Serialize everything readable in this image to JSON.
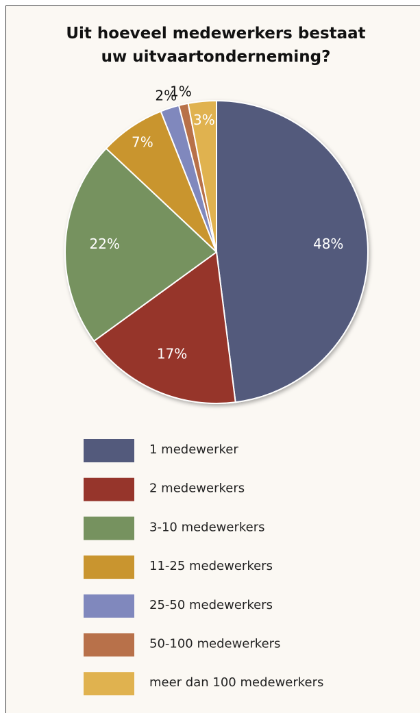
{
  "chart_data": {
    "type": "pie",
    "title": "Uit hoeveel medewerkers bestaat uw uitvaartonderneming?",
    "categories": [
      "1 medewerker",
      "2 medewerkers",
      "3-10 medewerkers",
      "11-25 medewerkers",
      "25-50 medewerkers",
      "50-100 medewerkers",
      "meer dan 100 medewerkers"
    ],
    "values": [
      48,
      17,
      22,
      7,
      2,
      1,
      3
    ],
    "value_labels": [
      "48%",
      "17%",
      "22%",
      "7%",
      "2%",
      "1%",
      "3%"
    ],
    "colors": [
      "#535a7c",
      "#96352b",
      "#76925f",
      "#c9952f",
      "#8088bd",
      "#b8714a",
      "#e0b24f"
    ]
  }
}
